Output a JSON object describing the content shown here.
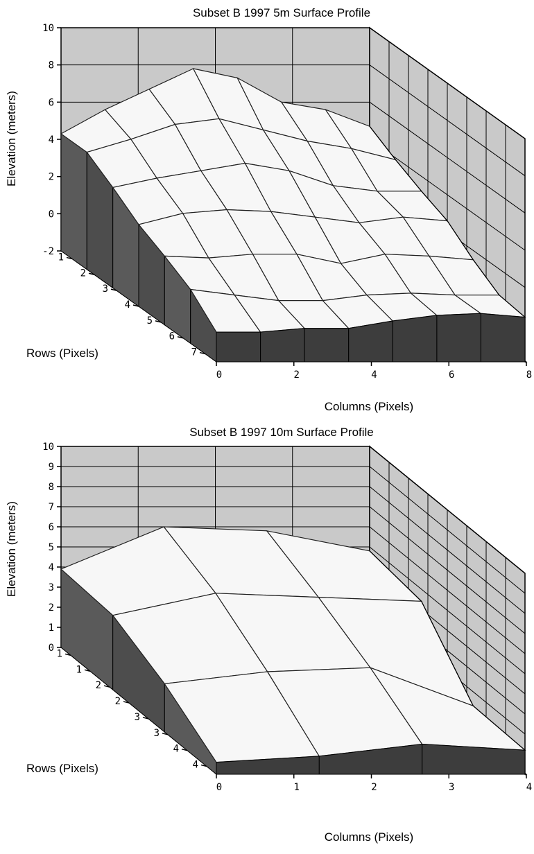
{
  "chart_data": [
    {
      "type": "surface3d",
      "title": "Subset B 1997 5m Surface Profile",
      "zlabel": "Elevation (meters)",
      "ylabel": "Rows (Pixels)",
      "xlabel": "Columns (Pixels)",
      "zlim": [
        -2,
        10
      ],
      "z_ticks": [
        "10",
        "8",
        "6",
        "4",
        "2",
        "0",
        "-2"
      ],
      "row_ticks": [
        "1",
        "2",
        "3",
        "4",
        "5",
        "6",
        "7"
      ],
      "col_ticks": [
        "0",
        "2",
        "4",
        "6",
        "8"
      ],
      "rows": 7,
      "cols": 8,
      "z": [
        [
          4.3,
          5.6,
          6.7,
          7.8,
          7.3,
          6.0,
          5.6,
          4.7
        ],
        [
          4.3,
          5.0,
          5.8,
          6.1,
          5.5,
          4.9,
          4.5,
          3.9
        ],
        [
          3.4,
          3.9,
          4.3,
          4.7,
          4.3,
          3.5,
          3.2,
          3.2
        ],
        [
          2.4,
          3.0,
          3.2,
          3.1,
          2.8,
          2.5,
          2.8,
          2.6
        ],
        [
          1.7,
          1.6,
          1.8,
          1.8,
          1.3,
          1.8,
          1.7,
          1.5
        ],
        [
          0.9,
          0.6,
          0.3,
          0.3,
          0.6,
          0.7,
          0.6,
          0.6
        ],
        [
          -0.4,
          -0.4,
          -0.2,
          -0.2,
          0.2,
          0.5,
          0.6,
          0.4
        ]
      ],
      "grid": true
    },
    {
      "type": "surface3d",
      "title": "Subset B 1997 10m Surface Profile",
      "zlabel": "Elevation (meters)",
      "ylabel": "Rows (Pixels)",
      "xlabel": "Columns (Pixels)",
      "zlim": [
        0,
        10
      ],
      "z_ticks": [
        "10",
        "9",
        "8",
        "7",
        "6",
        "5",
        "4",
        "3",
        "2",
        "1",
        "0"
      ],
      "row_ticks": [
        "1",
        "1",
        "2",
        "2",
        "3",
        "3",
        "4",
        "4"
      ],
      "col_ticks": [
        "0",
        "1",
        "2",
        "3",
        "4"
      ],
      "rows": 4,
      "cols": 4,
      "z": [
        [
          3.9,
          6.0,
          5.8,
          4.8
        ],
        [
          3.7,
          4.8,
          4.6,
          4.4
        ],
        [
          2.4,
          3.0,
          3.2,
          1.3
        ],
        [
          0.6,
          0.9,
          1.5,
          1.2
        ]
      ],
      "grid": true
    }
  ]
}
